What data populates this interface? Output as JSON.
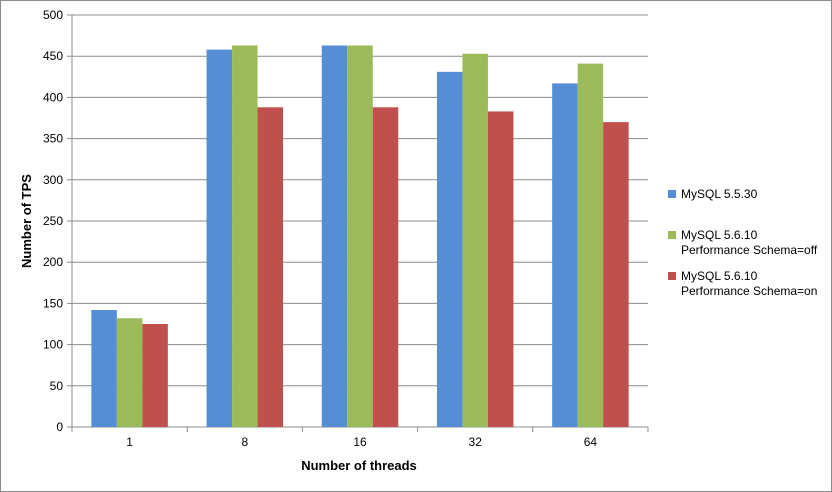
{
  "chart_data": {
    "type": "bar",
    "xlabel": "Number of threads",
    "ylabel": "Number of TPS",
    "categories": [
      "1",
      "8",
      "16",
      "32",
      "64"
    ],
    "ylim": [
      0,
      500
    ],
    "yticks": [
      0,
      50,
      100,
      150,
      200,
      250,
      300,
      350,
      400,
      450,
      500
    ],
    "grid": true,
    "legend_position": "right",
    "series": [
      {
        "name": "MySQL 5.5.30",
        "legend_lines": [
          "MySQL 5.5.30"
        ],
        "color": "#558ed5",
        "values": [
          142,
          458,
          463,
          431,
          417
        ]
      },
      {
        "name": "MySQL 5.6.10 Performance Schema=off",
        "legend_lines": [
          "MySQL 5.6.10",
          "Performance Schema=off"
        ],
        "color": "#9bbb59",
        "values": [
          132,
          463,
          463,
          453,
          441
        ]
      },
      {
        "name": "MySQL 5.6.10 Performance Schema=on",
        "legend_lines": [
          "MySQL 5.6.10",
          "Performance Schema=on"
        ],
        "color": "#c0504d",
        "values": [
          125,
          388,
          388,
          383,
          370
        ]
      }
    ]
  }
}
